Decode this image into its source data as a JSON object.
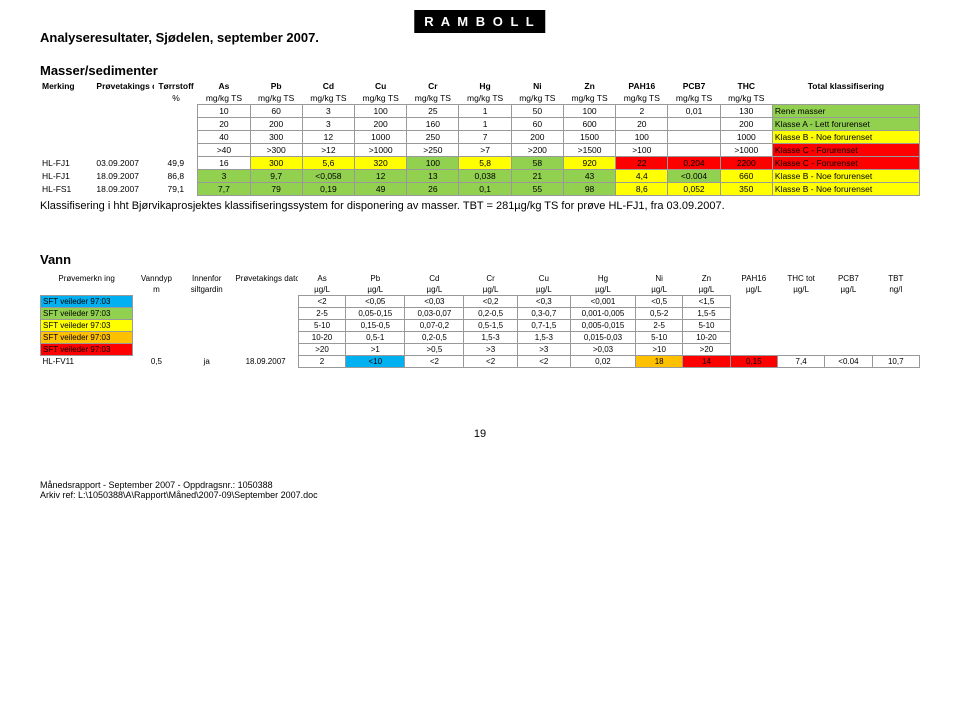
{
  "logo": "R A M B O L L",
  "page_title": "Analyseresultater, Sjødelen, september 2007.",
  "section1_title": "Masser/sedimenter",
  "table1": {
    "header_row1": [
      "Merking",
      "Prøvetakings dato",
      "Tørrstoff",
      "As",
      "Pb",
      "Cd",
      "Cu",
      "Cr",
      "Hg",
      "Ni",
      "Zn",
      "PAH16",
      "PCB7",
      "THC",
      "Total klassifisering"
    ],
    "header_row2": [
      "",
      "",
      "%",
      "mg/kg TS",
      "mg/kg TS",
      "mg/kg TS",
      "mg/kg TS",
      "mg/kg TS",
      "mg/kg TS",
      "mg/kg TS",
      "mg/kg TS",
      "mg/kg TS",
      "mg/kg TS",
      "mg/kg TS",
      ""
    ],
    "class_rows": [
      {
        "vals": [
          "",
          "",
          "",
          "10",
          "60",
          "3",
          "100",
          "25",
          "1",
          "50",
          "100",
          "2",
          "0,01",
          "130",
          "Rene masser"
        ],
        "bg": "#ffffff",
        "lastbg": "#92d050"
      },
      {
        "vals": [
          "",
          "",
          "",
          "20",
          "200",
          "3",
          "200",
          "160",
          "1",
          "60",
          "600",
          "20",
          "",
          "200",
          "Klasse A - Lett forurenset"
        ],
        "bg": "#ffffff",
        "lastbg": "#92d050"
      },
      {
        "vals": [
          "",
          "",
          "",
          "40",
          "300",
          "12",
          "1000",
          "250",
          "7",
          "200",
          "1500",
          "100",
          "",
          "1000",
          "Klasse B - Noe forurenset"
        ],
        "bg": "#ffffff",
        "lastbg": "#ffff00"
      },
      {
        "vals": [
          "",
          "",
          "",
          ">40",
          ">300",
          ">12",
          ">1000",
          ">250",
          ">7",
          ">200",
          ">1500",
          ">100",
          "",
          ">1000",
          "Klasse C - Forurenset"
        ],
        "bg": "#ffffff",
        "lastbg": "#ff0000"
      }
    ],
    "data_rows": [
      {
        "vals": [
          "HL-FJ1",
          "03.09.2007",
          "49,9",
          "16",
          "300",
          "5,6",
          "320",
          "100",
          "5,8",
          "58",
          "920",
          "22",
          "0,204",
          "2200",
          "Klasse C - Forurenset"
        ],
        "cellbg": [
          "",
          "",
          "",
          "#ffffff",
          "#ffff00",
          "#ffff00",
          "#ffff00",
          "#92d050",
          "#ffff00",
          "#92d050",
          "#ffff00",
          "#ff0000",
          "#ff0000",
          "#ff0000",
          "#ff0000"
        ]
      },
      {
        "vals": [
          "HL-FJ1",
          "18.09.2007",
          "86,8",
          "3",
          "9,7",
          "<0,058",
          "12",
          "13",
          "0,038",
          "21",
          "43",
          "4,4",
          "<0.004",
          "660",
          "Klasse B - Noe forurenset"
        ],
        "cellbg": [
          "",
          "",
          "",
          "#92d050",
          "#92d050",
          "#92d050",
          "#92d050",
          "#92d050",
          "#92d050",
          "#92d050",
          "#92d050",
          "#ffff00",
          "#92d050",
          "#ffff00",
          "#ffff00"
        ]
      },
      {
        "vals": [
          "HL-FS1",
          "18.09.2007",
          "79,1",
          "7,7",
          "79",
          "0,19",
          "49",
          "26",
          "0,1",
          "55",
          "98",
          "8,6",
          "0,052",
          "350",
          "Klasse B - Noe forurenset"
        ],
        "cellbg": [
          "",
          "",
          "",
          "#92d050",
          "#92d050",
          "#92d050",
          "#92d050",
          "#92d050",
          "#92d050",
          "#92d050",
          "#92d050",
          "#ffff00",
          "#ffff00",
          "#ffff00",
          "#ffff00"
        ]
      }
    ],
    "colw": [
      "50px",
      "55px",
      "40px",
      "48px",
      "48px",
      "48px",
      "48px",
      "48px",
      "48px",
      "48px",
      "48px",
      "48px",
      "48px",
      "48px",
      "135px"
    ]
  },
  "note_text": "Klassifisering i hht Bjørvikaprosjektes klassifiseringssystem for disponering av masser. TBT = 281µg/kg TS for prøve HL-FJ1, fra 03.09.2007.",
  "section2_title": "Vann",
  "table2": {
    "header_row1": [
      "Prøvemerkn ing",
      "Vanndyp",
      "Innenfor",
      "Prøvetakings dato",
      "As",
      "Pb",
      "Cd",
      "Cr",
      "Cu",
      "Hg",
      "Ni",
      "Zn",
      "PAH16",
      "THC tot",
      "PCB7",
      "TBT"
    ],
    "header_row2": [
      "",
      "m",
      "siltgardin",
      "",
      "µg/L",
      "µg/L",
      "µg/L",
      "µg/L",
      "µg/L",
      "µg/L",
      "µg/L",
      "µg/L",
      "µg/L",
      "µg/L",
      "µg/L",
      "ng/l"
    ],
    "rows": [
      {
        "label": "SFT veileder 97:03",
        "bg": "#00b0f0",
        "vals": [
          "",
          "",
          "",
          "",
          "<2",
          "<0,05",
          "<0,03",
          "<0,2",
          "<0,3",
          "<0,001",
          "<0,5",
          "<1,5",
          "",
          "",
          "",
          ""
        ]
      },
      {
        "label": "SFT veileder 97:03",
        "bg": "#92d050",
        "vals": [
          "",
          "",
          "",
          "",
          "2-5",
          "0,05-0,15",
          "0,03-0,07",
          "0,2-0,5",
          "0,3-0,7",
          "0,001-0,005",
          "0,5-2",
          "1,5-5",
          "",
          "",
          "",
          ""
        ]
      },
      {
        "label": "SFT veileder 97:03",
        "bg": "#ffff00",
        "vals": [
          "",
          "",
          "",
          "",
          "5-10",
          "0,15-0,5",
          "0,07-0,2",
          "0,5-1,5",
          "0,7-1,5",
          "0,005-0,015",
          "2-5",
          "5-10",
          "",
          "",
          "",
          ""
        ]
      },
      {
        "label": "SFT veileder 97:03",
        "bg": "#ffc000",
        "vals": [
          "",
          "",
          "",
          "",
          "10-20",
          "0,5-1",
          "0,2-0,5",
          "1,5-3",
          "1,5-3",
          "0,015-0,03",
          "5-10",
          "10-20",
          "",
          "",
          "",
          ""
        ]
      },
      {
        "label": "SFT veileder 97:03",
        "bg": "#ff0000",
        "vals": [
          "",
          "",
          "",
          "",
          ">20",
          ">1",
          ">0,5",
          ">3",
          ">3",
          ">0,03",
          ">10",
          ">20",
          "",
          "",
          "",
          ""
        ]
      },
      {
        "label": "HL-FV11",
        "bg": "",
        "vals": [
          "",
          "0,5",
          "ja",
          "18.09.2007",
          "2",
          "<10",
          "<2",
          "<2",
          "<2",
          "0,02",
          "18",
          "14",
          "0,15",
          "7,4",
          "<0.04",
          "10,7"
        ],
        "cellbg": [
          "",
          "",
          "",
          "",
          "",
          "#00b0f0",
          "",
          "",
          "",
          "",
          "#ffc000",
          "#ff0000",
          "#ff0000",
          "",
          "",
          "",
          ""
        ]
      }
    ],
    "colw": [
      "78px",
      "40px",
      "45px",
      "55px",
      "40px",
      "50px",
      "50px",
      "45px",
      "45px",
      "55px",
      "40px",
      "40px",
      "40px",
      "40px",
      "40px",
      "40px"
    ]
  },
  "page_number": "19",
  "footer_line1": "Månedsrapport - September 2007 - Oppdragsnr.: 1050388",
  "footer_line2": "Arkiv ref: L:\\1050388\\A\\Rapport\\Måned\\2007-09\\September 2007.doc"
}
